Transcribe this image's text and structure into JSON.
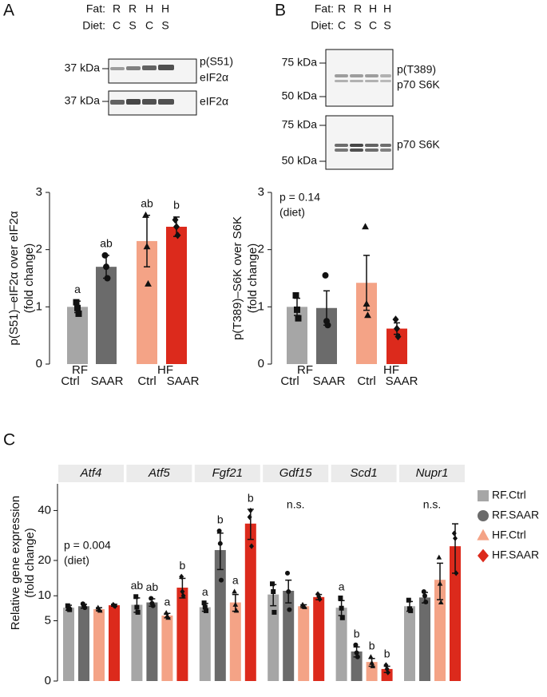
{
  "panel_labels": [
    "A",
    "B",
    "C"
  ],
  "blot_a": {
    "fat_label": "Fat:",
    "fat": [
      "R",
      "R",
      "H",
      "H"
    ],
    "diet_label": "Diet:",
    "diet": [
      "C",
      "S",
      "C",
      "S"
    ],
    "rows": [
      {
        "markers": [
          "37 kDa"
        ],
        "label": [
          "p(S51)",
          "eIF2α"
        ]
      },
      {
        "markers": [
          "37 kDa"
        ],
        "label": [
          "eIF2α"
        ]
      }
    ]
  },
  "blot_b": {
    "fat_label": "Fat:",
    "fat": [
      "R",
      "R",
      "H",
      "H"
    ],
    "diet_label": "Diet:",
    "diet": [
      "C",
      "S",
      "C",
      "S"
    ],
    "rows": [
      {
        "markers": [
          "75 kDa",
          "50 kDa"
        ],
        "label": [
          "p(T389)",
          "p70 S6K"
        ]
      },
      {
        "markers": [
          "75 kDa",
          "50 kDa"
        ],
        "label": [
          "p70 S6K"
        ]
      }
    ]
  },
  "chart_data": [
    {
      "type": "bar",
      "ylabel": [
        "p(S51)–eIF2α over eIF2α",
        "(fold change)"
      ],
      "categories": [
        "Ctrl",
        "SAAR",
        "Ctrl",
        "SAAR"
      ],
      "groups": [
        "RF",
        "HF"
      ],
      "colors": [
        "#a6a6a6",
        "#6b6b6b",
        "#f4a386",
        "#dc2a1c"
      ],
      "markers": [
        "square",
        "circle",
        "triangle",
        "diamond"
      ],
      "values": [
        1.0,
        1.7,
        2.15,
        2.4
      ],
      "errors": [
        0.1,
        0.2,
        0.45,
        0.17
      ],
      "points": [
        [
          1.08,
          0.98,
          0.88
        ],
        [
          1.9,
          1.7,
          1.5
        ],
        [
          2.6,
          2.05,
          1.4
        ],
        [
          2.52,
          2.4,
          2.25
        ]
      ],
      "letters": [
        "a",
        "ab",
        "ab",
        "b"
      ],
      "ylim": [
        0,
        3
      ],
      "yticks": [
        0,
        1,
        2,
        3
      ]
    },
    {
      "type": "bar",
      "ylabel": [
        "p(T389)–S6K over S6K",
        "(fold change)"
      ],
      "annotation": [
        "p = 0.14",
        "(diet)"
      ],
      "categories": [
        "Ctrl",
        "SAAR",
        "Ctrl",
        "SAAR"
      ],
      "groups": [
        "RF",
        "HF"
      ],
      "colors": [
        "#a6a6a6",
        "#6b6b6b",
        "#f4a386",
        "#dc2a1c"
      ],
      "markers": [
        "square",
        "circle",
        "triangle",
        "diamond"
      ],
      "values": [
        1.0,
        0.98,
        1.42,
        0.62
      ],
      "errors": [
        0.15,
        0.3,
        0.48,
        0.1
      ],
      "points": [
        [
          1.2,
          0.95,
          0.8
        ],
        [
          1.55,
          0.75,
          0.68
        ],
        [
          2.4,
          1.05,
          0.85
        ],
        [
          0.78,
          0.62,
          0.48
        ]
      ],
      "ylim": [
        0,
        3
      ],
      "yticks": [
        0,
        1,
        2,
        3
      ]
    },
    {
      "type": "faceted-bar",
      "yscale": "sqrt",
      "ylabel": [
        "Relative gene expression",
        "(fold change)"
      ],
      "annotation": [
        "p = 0.004",
        "(diet)"
      ],
      "series": [
        {
          "name": "RF.Ctrl",
          "color": "#a6a6a6",
          "marker": "square"
        },
        {
          "name": "RF.SAAR",
          "color": "#6b6b6b",
          "marker": "circle"
        },
        {
          "name": "HF.Ctrl",
          "color": "#f4a386",
          "marker": "triangle"
        },
        {
          "name": "HF.SAAR",
          "color": "#dc2a1c",
          "marker": "diamond"
        }
      ],
      "facets": [
        {
          "name": "Atf4",
          "values": [
            7.4,
            7.7,
            7.1,
            7.9
          ],
          "errors": [
            0.5,
            0.4,
            0.3,
            0.2
          ],
          "points": [
            [
              7.8,
              7.2,
              7.0
            ],
            [
              8.2,
              7.8,
              7.4
            ],
            [
              7.4,
              7.0,
              6.8
            ],
            [
              8.0,
              7.8,
              7.7
            ]
          ]
        },
        {
          "name": "Atf5",
          "values": [
            8.0,
            8.5,
            5.9,
            12.0
          ],
          "errors": [
            1.5,
            0.8,
            0.4,
            2.5
          ],
          "points": [
            [
              9.8,
              7.5,
              6.5
            ],
            [
              9.4,
              8.3,
              7.8
            ],
            [
              6.4,
              5.8,
              5.5
            ],
            [
              15,
              11,
              10
            ]
          ],
          "letters": [
            "ab",
            "ab",
            "a",
            "b"
          ]
        },
        {
          "name": "Fgf21",
          "values": [
            7.5,
            23.6,
            8.5,
            34.1
          ],
          "errors": [
            0.8,
            6.5,
            1.8,
            6.5
          ],
          "points": [
            [
              8.4,
              7.5,
              6.8
            ],
            [
              31,
              26,
              14
            ],
            [
              11,
              8,
              6.8
            ],
            [
              37,
              40,
              25
            ]
          ],
          "letters": [
            "a",
            "b",
            "a",
            "b"
          ]
        },
        {
          "name": "Gdf15",
          "values": [
            10.3,
            11.2,
            7.7,
            9.7
          ],
          "errors": [
            2.5,
            2.8,
            0.3,
            0.6
          ],
          "points": [
            [
              13,
              11,
              6.5
            ],
            [
              16,
              11,
              7
            ],
            [
              8,
              7.7,
              7.5
            ],
            [
              10.4,
              9.8,
              9.2
            ]
          ],
          "annotation": "n.s."
        },
        {
          "name": "Scd1",
          "values": [
            7.4,
            1.2,
            0.5,
            0.2
          ],
          "errors": [
            1.5,
            0.4,
            0.2,
            0.1
          ],
          "points": [
            [
              9.5,
              7.3,
              5.5
            ],
            [
              1.8,
              1.1,
              0.8
            ],
            [
              0.8,
              0.45,
              0.3
            ],
            [
              0.35,
              0.2,
              0.1
            ]
          ],
          "letters": [
            "a",
            "b",
            "b",
            "b"
          ]
        },
        {
          "name": "Nupr1",
          "values": [
            7.7,
            9.6,
            14.1,
            25
          ],
          "errors": [
            1,
            1.2,
            5,
            9
          ],
          "points": [
            [
              9,
              7.2,
              6.8
            ],
            [
              11,
              10,
              8.6
            ],
            [
              21,
              13,
              8.5
            ],
            [
              30,
              28,
              16
            ]
          ],
          "annotation": "n.s."
        }
      ],
      "ylim": [
        0,
        53.5
      ],
      "yticks": [
        0,
        5,
        10,
        20,
        40
      ]
    }
  ]
}
